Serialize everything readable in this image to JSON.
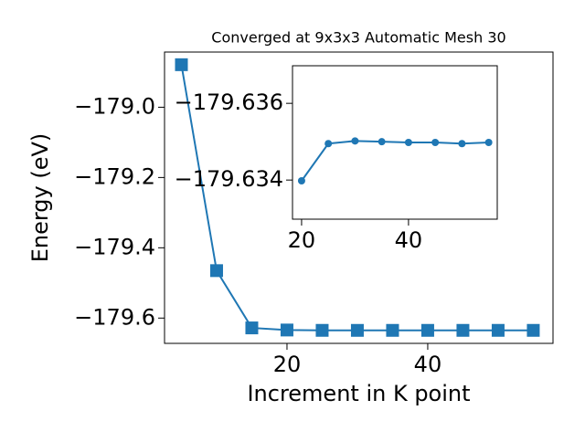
{
  "chart_data": [
    {
      "type": "line",
      "title": "Converged at 9x3x3 Automatic Mesh 30",
      "xlabel": "Increment in K point",
      "ylabel": "Energy (eV)",
      "x": [
        5,
        10,
        15,
        20,
        25,
        30,
        35,
        40,
        45,
        50,
        55
      ],
      "values": [
        -178.879,
        -179.465,
        -179.628,
        -179.63398,
        -179.63495,
        -179.63502,
        -179.635,
        -179.63498,
        -179.63498,
        -179.63495,
        -179.63498
      ],
      "color": "#1f77b4",
      "marker": "square",
      "xlim": [
        2.6,
        57.8
      ],
      "ylim": [
        -179.672,
        -178.843
      ],
      "xticks": [
        20,
        40
      ],
      "yticks": [
        {
          "value": -179.6,
          "label": "−179.6"
        },
        {
          "value": -179.4,
          "label": "−179.4"
        },
        {
          "value": -179.2,
          "label": "−179.2"
        },
        {
          "value": -179.0,
          "label": "−179.0"
        }
      ]
    },
    {
      "type": "line",
      "x": [
        20,
        25,
        30,
        35,
        40,
        45,
        50,
        55
      ],
      "values": [
        -179.63398,
        -179.63495,
        -179.63502,
        -179.635,
        -179.63498,
        -179.63498,
        -179.63495,
        -179.63498
      ],
      "color": "#1f77b4",
      "marker": "circle",
      "xlim": [
        18.3,
        56.6
      ],
      "ylim": [
        -179.63298,
        -179.63698
      ],
      "xticks": [
        20,
        40
      ],
      "yticks": [
        {
          "value": -179.634,
          "label": "−179.634"
        },
        {
          "value": -179.636,
          "label": "−179.636"
        }
      ]
    }
  ]
}
